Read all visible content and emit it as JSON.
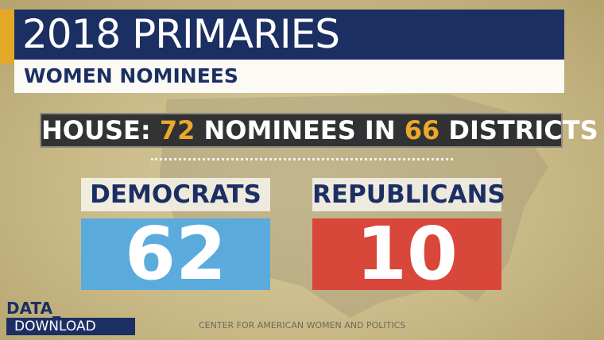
{
  "header": {
    "title": "2018 PRIMARIES",
    "subtitle": "WOMEN NOMINEES"
  },
  "house": {
    "prefix": "HOUSE:",
    "nominees": "72",
    "middle": "NOMINEES IN",
    "districts": "66",
    "suffix": "DISTRICTS"
  },
  "parties": [
    {
      "name": "DEMOCRATS",
      "count": "62"
    },
    {
      "name": "REPUBLICANS",
      "count": "10"
    }
  ],
  "branding": {
    "line1": "DATA_",
    "line2": "DOWNLOAD"
  },
  "source": "CENTER FOR AMERICAN WOMEN AND POLITICS"
}
